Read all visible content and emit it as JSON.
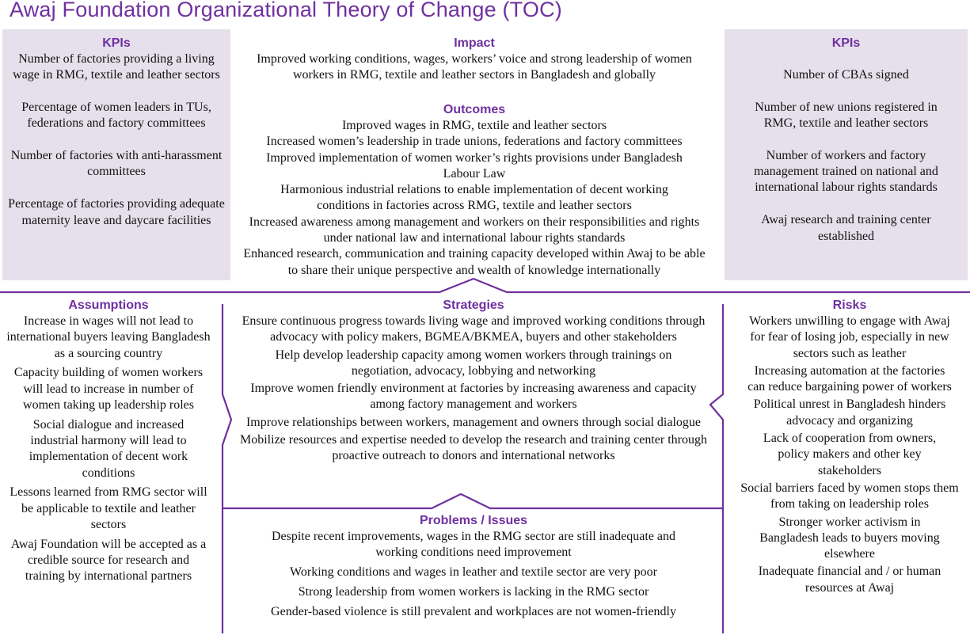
{
  "title": "Awaj Foundation Organizational Theory of Change (TOC)",
  "colors": {
    "accent": "#7030a0",
    "box_fill": "#e5e0ec"
  },
  "kpis_left": {
    "heading": "KPIs",
    "items": [
      "Number of factories providing a living wage in RMG, textile and leather sectors",
      "Percentage of women leaders in TUs, federations and factory committees",
      "Number of factories with anti-harassment committees",
      "Percentage of factories providing adequate maternity leave and daycare facilities"
    ]
  },
  "impact": {
    "heading": "Impact",
    "text": "Improved working conditions, wages, workers’ voice and strong leadership of women workers in RMG, textile and leather sectors in Bangladesh and globally"
  },
  "outcomes": {
    "heading": "Outcomes",
    "items": [
      "Improved wages in RMG, textile and leather sectors",
      "Increased women’s leadership in trade unions, federations and factory committees",
      "Improved implementation of women worker’s rights provisions under Bangladesh Labour Law",
      "Harmonious industrial relations to enable implementation of decent working conditions in factories across RMG, textile and leather sectors",
      "Increased awareness among management and workers on their responsibilities and rights under national law and international labour rights standards",
      "Enhanced research, communication and training capacity developed within Awaj to be able to share their unique perspective and wealth of knowledge internationally"
    ]
  },
  "kpis_right": {
    "heading": "KPIs",
    "items": [
      "Number of CBAs signed",
      "Number of new unions registered in RMG, textile and leather sectors",
      "Number of workers and factory management trained on national and international labour rights standards",
      "Awaj research and training center established"
    ]
  },
  "assumptions": {
    "heading": "Assumptions",
    "items": [
      "Increase in wages will not lead to international buyers leaving Bangladesh as a sourcing country",
      "Capacity building of women workers will lead to increase in number of women taking up leadership roles",
      "Social dialogue and increased industrial harmony will lead to implementation of decent work conditions",
      "Lessons learned from RMG sector will be applicable to textile and leather sectors",
      "Awaj Foundation will be accepted as a credible source for research and training by international partners"
    ]
  },
  "strategies": {
    "heading": "Strategies",
    "items": [
      "Ensure continuous progress towards living wage and improved working conditions through advocacy with policy makers, BGMEA/BKMEA, buyers and other stakeholders",
      "Help develop leadership capacity among women workers through trainings on negotiation, advocacy, lobbying and networking",
      "Improve women friendly environment at factories by increasing awareness and capacity among factory management and workers",
      "Improve relationships between workers, management and owners through social dialogue",
      "Mobilize resources and expertise needed to develop the research and training center through proactive outreach to donors and international networks"
    ]
  },
  "problems": {
    "heading": "Problems / Issues",
    "items": [
      "Despite recent improvements, wages in the RMG sector are still inadequate and working conditions need improvement",
      "Working conditions and wages in leather and textile sector are very poor",
      "Strong leadership from women workers is lacking in the RMG sector",
      "Gender-based violence is still prevalent and workplaces are not women-friendly"
    ]
  },
  "risks": {
    "heading": "Risks",
    "items": [
      "Workers unwilling to engage with Awaj for fear of losing job, especially in new sectors such as leather",
      "Increasing automation at the factories can reduce bargaining power of workers",
      "Political unrest in Bangladesh hinders advocacy and organizing",
      "Lack of cooperation from owners, policy makers and other key stakeholders",
      "Social barriers faced by women stops them from taking on leadership roles",
      "Stronger worker activism in Bangladesh leads to buyers moving elsewhere",
      "Inadequate financial and / or human resources at Awaj"
    ]
  }
}
